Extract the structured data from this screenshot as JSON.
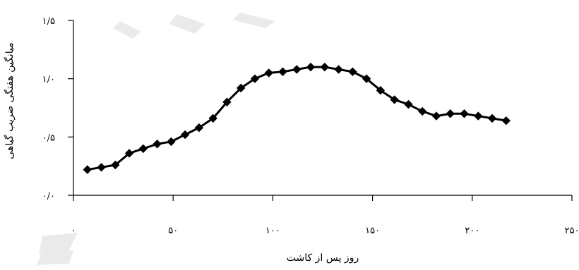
{
  "chart_data": {
    "type": "line",
    "title": "",
    "xlabel": "روز پس از کاشت",
    "ylabel": "میانگین هفتگی ضریب گیاهی",
    "xlim": [
      0,
      250
    ],
    "ylim": [
      0,
      1.5
    ],
    "x_ticks": [
      0,
      50,
      100,
      150,
      200,
      250
    ],
    "x_tick_labels": [
      "۰",
      "۵۰",
      "۱۰۰",
      "۱۵۰",
      "۲۰۰",
      "۲۵۰"
    ],
    "y_ticks": [
      0,
      0.5,
      1,
      1.5
    ],
    "y_tick_labels": [
      "۰/۰",
      "۰/۵",
      "۱/۰",
      "۱/۵"
    ],
    "grid": false,
    "legend": "none",
    "series": [
      {
        "color": "#000000",
        "marker": "diamond",
        "x": [
          7,
          14,
          21,
          28,
          35,
          42,
          49,
          56,
          63,
          70,
          77,
          84,
          91,
          98,
          105,
          112,
          119,
          126,
          133,
          140,
          147,
          154,
          161,
          168,
          175,
          182,
          189,
          196,
          203,
          210,
          217
        ],
        "values": [
          0.22,
          0.24,
          0.26,
          0.36,
          0.4,
          0.44,
          0.46,
          0.52,
          0.58,
          0.66,
          0.8,
          0.92,
          1.0,
          1.05,
          1.06,
          1.08,
          1.1,
          1.1,
          1.08,
          1.06,
          1.0,
          0.9,
          0.82,
          0.78,
          0.72,
          0.68,
          0.7,
          0.7,
          0.68,
          0.66,
          0.64
        ]
      }
    ]
  }
}
